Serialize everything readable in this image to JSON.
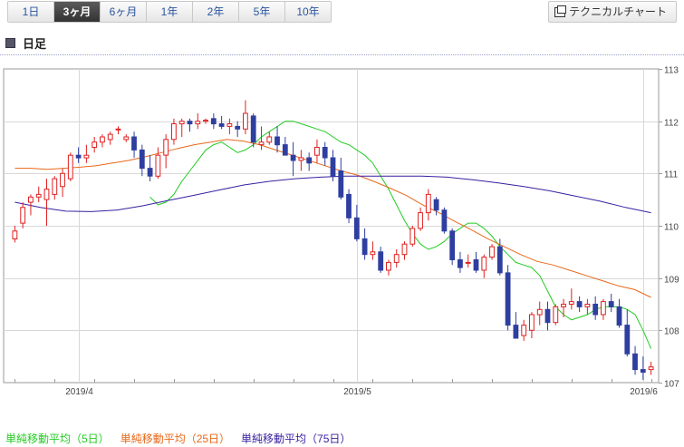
{
  "tabs": [
    {
      "label": "1日",
      "active": false
    },
    {
      "label": "3ヶ月",
      "active": true
    },
    {
      "label": "6ヶ月",
      "active": false
    },
    {
      "label": "1年",
      "active": false
    },
    {
      "label": "2年",
      "active": false
    },
    {
      "label": "5年",
      "active": false
    },
    {
      "label": "10年",
      "active": false
    }
  ],
  "technical_button": {
    "label": "テクニカルチャート",
    "icon": "chart-window-icon"
  },
  "period_title": "日足",
  "colors": {
    "up_candle": "#e02020",
    "down_candle": "#2f3fa0",
    "ma5": "#22cc22",
    "ma25": "#e8681a",
    "ma75": "#3a1fa0",
    "grid": "#d8d8d8",
    "axis": "#9a9a9a"
  },
  "legend": [
    {
      "label": "単純移動平均（5日）",
      "color": "#22cc22"
    },
    {
      "label": "単純移動平均（25日）",
      "color": "#e8681a"
    },
    {
      "label": "単純移動平均（75日）",
      "color": "#3a1fa0"
    }
  ],
  "chart_data": {
    "type": "candlestick",
    "title": "",
    "xlabel": "",
    "ylabel": "",
    "ylim": [
      107,
      113
    ],
    "y_ticks": [
      107,
      108,
      109,
      110,
      111,
      112,
      113
    ],
    "x_tick_labels": [
      {
        "label": "2019/4",
        "index": 8
      },
      {
        "label": "2019/5",
        "index": 43
      },
      {
        "label": "2019/6",
        "index": 79
      }
    ],
    "grid": true,
    "candles": [
      [
        109.75,
        110.0,
        109.68,
        109.9
      ],
      [
        110.05,
        110.45,
        109.95,
        110.35
      ],
      [
        110.45,
        110.6,
        110.2,
        110.55
      ],
      [
        110.55,
        110.75,
        110.45,
        110.6
      ],
      [
        110.5,
        110.9,
        110.0,
        110.7
      ],
      [
        110.6,
        110.95,
        110.5,
        110.9
      ],
      [
        110.75,
        111.1,
        110.55,
        111.0
      ],
      [
        110.9,
        111.4,
        110.85,
        111.35
      ],
      [
        111.35,
        111.5,
        111.2,
        111.3
      ],
      [
        111.3,
        111.55,
        111.2,
        111.35
      ],
      [
        111.5,
        111.7,
        111.4,
        111.6
      ],
      [
        111.6,
        111.75,
        111.5,
        111.7
      ],
      [
        111.65,
        111.8,
        111.55,
        111.75
      ],
      [
        111.85,
        111.9,
        111.75,
        111.85
      ],
      [
        111.65,
        111.75,
        111.6,
        111.7
      ],
      [
        111.7,
        111.8,
        111.3,
        111.45
      ],
      [
        111.45,
        111.55,
        110.95,
        111.1
      ],
      [
        111.1,
        111.35,
        110.85,
        110.95
      ],
      [
        110.95,
        111.5,
        110.9,
        111.35
      ],
      [
        111.35,
        111.75,
        111.1,
        111.65
      ],
      [
        111.65,
        112.05,
        111.55,
        111.95
      ],
      [
        111.95,
        112.05,
        111.7,
        112.0
      ],
      [
        112.0,
        112.05,
        111.8,
        111.95
      ],
      [
        111.95,
        112.15,
        111.85,
        112.0
      ],
      [
        112.0,
        112.05,
        111.95,
        112.02
      ],
      [
        112.05,
        112.15,
        111.85,
        111.95
      ],
      [
        111.95,
        112.1,
        111.85,
        111.9
      ],
      [
        111.9,
        112.05,
        111.75,
        111.95
      ],
      [
        111.9,
        112.0,
        111.7,
        111.85
      ],
      [
        111.85,
        112.4,
        111.75,
        112.15
      ],
      [
        112.1,
        112.15,
        111.5,
        111.6
      ],
      [
        111.55,
        111.9,
        111.45,
        111.6
      ],
      [
        111.6,
        111.8,
        111.55,
        111.7
      ],
      [
        111.7,
        111.9,
        111.4,
        111.55
      ],
      [
        111.55,
        111.7,
        111.4,
        111.35
      ],
      [
        111.35,
        111.6,
        110.95,
        111.25
      ],
      [
        111.25,
        111.45,
        111.05,
        111.3
      ],
      [
        111.3,
        111.4,
        111.05,
        111.2
      ],
      [
        111.35,
        111.65,
        111.2,
        111.5
      ],
      [
        111.5,
        111.6,
        111.15,
        111.3
      ],
      [
        111.3,
        111.45,
        110.85,
        110.95
      ],
      [
        111.05,
        111.3,
        110.5,
        110.55
      ],
      [
        110.6,
        110.7,
        110.05,
        110.15
      ],
      [
        110.15,
        110.4,
        109.7,
        109.75
      ],
      [
        109.75,
        109.95,
        109.35,
        109.45
      ],
      [
        109.45,
        109.7,
        109.35,
        109.5
      ],
      [
        109.5,
        109.6,
        109.1,
        109.15
      ],
      [
        109.15,
        109.35,
        109.05,
        109.3
      ],
      [
        109.3,
        109.55,
        109.2,
        109.45
      ],
      [
        109.45,
        109.7,
        109.35,
        109.65
      ],
      [
        109.65,
        110.0,
        109.6,
        109.95
      ],
      [
        109.95,
        110.35,
        109.9,
        110.25
      ],
      [
        110.25,
        110.7,
        110.1,
        110.6
      ],
      [
        110.5,
        110.55,
        110.2,
        110.3
      ],
      [
        110.3,
        110.35,
        109.85,
        109.9
      ],
      [
        109.9,
        109.95,
        109.25,
        109.35
      ],
      [
        109.35,
        109.5,
        109.1,
        109.2
      ],
      [
        109.3,
        109.45,
        109.2,
        109.3
      ],
      [
        109.35,
        109.5,
        109.1,
        109.15
      ],
      [
        109.15,
        109.45,
        109.0,
        109.4
      ],
      [
        109.4,
        109.65,
        109.35,
        109.6
      ],
      [
        109.6,
        109.75,
        109.05,
        109.1
      ],
      [
        109.1,
        109.25,
        108.0,
        108.1
      ],
      [
        108.1,
        108.35,
        107.85,
        107.85
      ],
      [
        107.9,
        108.2,
        107.8,
        108.1
      ],
      [
        108.0,
        108.35,
        107.85,
        108.3
      ],
      [
        108.3,
        108.55,
        108.1,
        108.4
      ],
      [
        108.4,
        108.55,
        108.0,
        108.15
      ],
      [
        108.15,
        108.5,
        108.1,
        108.45
      ],
      [
        108.45,
        108.6,
        108.25,
        108.5
      ],
      [
        108.5,
        108.8,
        108.4,
        108.55
      ],
      [
        108.55,
        108.65,
        108.35,
        108.45
      ],
      [
        108.45,
        108.6,
        108.3,
        108.5
      ],
      [
        108.5,
        108.65,
        108.2,
        108.3
      ],
      [
        108.3,
        108.6,
        108.2,
        108.55
      ],
      [
        108.55,
        108.7,
        108.35,
        108.45
      ],
      [
        108.45,
        108.6,
        108.05,
        108.1
      ],
      [
        108.1,
        108.4,
        107.5,
        107.55
      ],
      [
        107.55,
        107.7,
        107.15,
        107.25
      ],
      [
        107.25,
        107.5,
        107.05,
        107.2
      ],
      [
        107.25,
        107.4,
        107.15,
        107.3
      ]
    ],
    "series": [
      {
        "name": "単純移動平均（5日）",
        "type": "line",
        "values": [
          110.55,
          110.4,
          110.45,
          110.6,
          110.85,
          111.05,
          111.25,
          111.45,
          111.55,
          111.6,
          111.5,
          111.4,
          111.45,
          111.55,
          111.7,
          111.8,
          111.9,
          112.0,
          112.0,
          111.95,
          111.9,
          111.85,
          111.8,
          111.7,
          111.6,
          111.55,
          111.45,
          111.35,
          111.2,
          110.95,
          110.7,
          110.4,
          110.1,
          109.85,
          109.65,
          109.55,
          109.6,
          109.7,
          109.85,
          109.95,
          110.05,
          110.05,
          109.95,
          109.8,
          109.6,
          109.45,
          109.3,
          109.25,
          109.2,
          109.05,
          108.75,
          108.45,
          108.3,
          108.2,
          108.25,
          108.3,
          108.4,
          108.45,
          108.45,
          108.45,
          108.4,
          108.3,
          108.0,
          107.65
        ]
      },
      {
        "name": "単純移動平均（25日）",
        "type": "line",
        "values": [
          111.1,
          111.1,
          111.08,
          111.1,
          111.12,
          111.15,
          111.2,
          111.25,
          111.32,
          111.4,
          111.48,
          111.55,
          111.6,
          111.65,
          111.62,
          111.55,
          111.45,
          111.35,
          111.25,
          111.15,
          111.05,
          110.97,
          110.85,
          110.72,
          110.58,
          110.4,
          110.25,
          110.08,
          109.92,
          109.75,
          109.6,
          109.45,
          109.32,
          109.25,
          109.15,
          109.05,
          108.95,
          108.85,
          108.78,
          108.63
        ]
      },
      {
        "name": "単純移動平均（75日）",
        "type": "line",
        "values": [
          110.45,
          110.35,
          110.28,
          110.27,
          110.3,
          110.38,
          110.48,
          110.58,
          110.68,
          110.78,
          110.85,
          110.9,
          110.93,
          110.95,
          110.95,
          110.95,
          110.95,
          110.93,
          110.88,
          110.82,
          110.75,
          110.67,
          110.57,
          110.47,
          110.35,
          110.25
        ]
      }
    ]
  }
}
